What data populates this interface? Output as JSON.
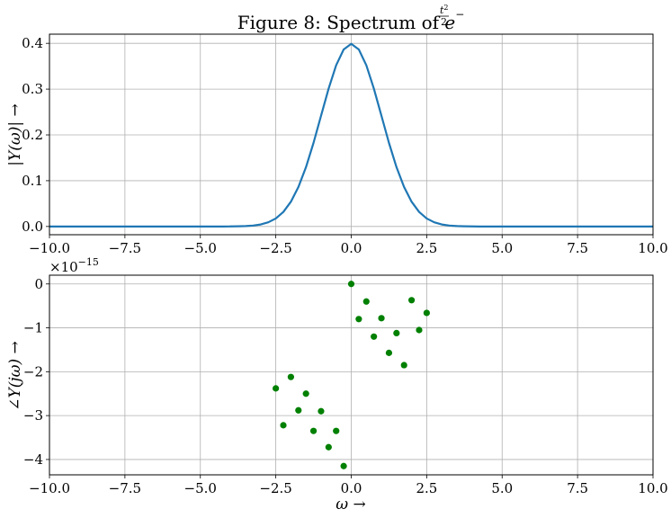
{
  "figure_title": {
    "prefix": "Figure 8: Spectrum of ",
    "base": "e",
    "exponent_sign": "−",
    "exponent_numerator": "t",
    "exponent_power": "2",
    "exponent_denominator": "2"
  },
  "chart_data": [
    {
      "type": "line",
      "ylabel": "|Y(ω)| →",
      "xlabel": "",
      "xlim": [
        -10,
        10
      ],
      "ylim": [
        -0.018,
        0.42
      ],
      "xticks": [
        "−10.0",
        "−7.5",
        "−5.0",
        "−2.5",
        "0.0",
        "2.5",
        "5.0",
        "7.5",
        "10.0"
      ],
      "xtick_values": [
        -10,
        -7.5,
        -5,
        -2.5,
        0,
        2.5,
        5,
        7.5,
        10
      ],
      "yticks": [
        "0.0",
        "0.1",
        "0.2",
        "0.3",
        "0.4"
      ],
      "ytick_values": [
        0,
        0.1,
        0.2,
        0.3,
        0.4
      ],
      "grid": true,
      "color": "#1f77b4",
      "series": [
        {
          "x": [
            -10.0,
            -9.75,
            -9.5,
            -9.25,
            -9.0,
            -8.75,
            -8.5,
            -8.25,
            -8.0,
            -7.75,
            -7.5,
            -7.25,
            -7.0,
            -6.75,
            -6.5,
            -6.25,
            -6.0,
            -5.75,
            -5.5,
            -5.25,
            -5.0,
            -4.75,
            -4.5,
            -4.25,
            -4.0,
            -3.75,
            -3.5,
            -3.25,
            -3.0,
            -2.75,
            -2.5,
            -2.25,
            -2.0,
            -1.75,
            -1.5,
            -1.25,
            -1.0,
            -0.75,
            -0.5,
            -0.25,
            0.0,
            0.25,
            0.5,
            0.75,
            1.0,
            1.25,
            1.5,
            1.75,
            2.0,
            2.25,
            2.5,
            2.75,
            3.0,
            3.25,
            3.5,
            3.75,
            4.0,
            4.25,
            4.5,
            4.75,
            5.0,
            5.25,
            5.5,
            5.75,
            6.0,
            6.25,
            6.5,
            6.75,
            7.0,
            7.25,
            7.5,
            7.75,
            8.0,
            8.25,
            8.5,
            8.75,
            9.0,
            9.25,
            9.5,
            9.75,
            10.0
          ],
          "y": [
            0,
            0,
            0,
            0,
            0,
            0,
            0,
            0,
            0,
            0,
            0,
            0,
            0,
            0,
            0,
            0,
            0,
            0,
            0,
            0,
            0,
            0,
            0,
            0,
            0.0001,
            0.0004,
            0.0009,
            0.002,
            0.0044,
            0.0091,
            0.0175,
            0.0317,
            0.054,
            0.0863,
            0.1295,
            0.1826,
            0.242,
            0.3011,
            0.3521,
            0.3867,
            0.3989,
            0.3867,
            0.3521,
            0.3011,
            0.242,
            0.1826,
            0.1295,
            0.0863,
            0.054,
            0.0317,
            0.0175,
            0.0091,
            0.0044,
            0.002,
            0.0009,
            0.0004,
            0.0001,
            0,
            0,
            0,
            0,
            0,
            0,
            0,
            0,
            0,
            0,
            0,
            0,
            0,
            0,
            0,
            0,
            0,
            0,
            0,
            0,
            0,
            0,
            0,
            0
          ]
        }
      ]
    },
    {
      "type": "scatter",
      "ylabel": "∠Y(jω) →",
      "xlabel": "ω →",
      "y_offset_label": "×10",
      "y_offset_exponent": "−15",
      "xlim": [
        -10,
        10
      ],
      "ylim": [
        -4.35,
        0.2
      ],
      "xticks": [
        "−10.0",
        "−7.5",
        "−5.0",
        "−2.5",
        "0.0",
        "2.5",
        "5.0",
        "7.5",
        "10.0"
      ],
      "xtick_values": [
        -10,
        -7.5,
        -5,
        -2.5,
        0,
        2.5,
        5,
        7.5,
        10
      ],
      "yticks": [
        "0",
        "−1",
        "−2",
        "−3",
        "−4"
      ],
      "ytick_values": [
        0,
        -1,
        -2,
        -3,
        -4
      ],
      "grid": true,
      "color": "#008000",
      "series": [
        {
          "x": [
            -2.5,
            -2.25,
            -2.0,
            -1.75,
            -1.5,
            -1.25,
            -1.0,
            -0.75,
            -0.5,
            -0.25,
            0.0,
            0.25,
            0.5,
            0.75,
            1.0,
            1.25,
            1.5,
            1.75,
            2.0,
            2.25,
            2.5
          ],
          "y": [
            -2.38,
            -3.22,
            -2.12,
            -2.88,
            -2.5,
            -3.35,
            -2.9,
            -3.72,
            -3.35,
            -4.15,
            0.0,
            -0.8,
            -0.4,
            -1.2,
            -0.78,
            -1.57,
            -1.12,
            -1.85,
            -0.37,
            -1.05,
            -0.66
          ]
        }
      ]
    }
  ]
}
